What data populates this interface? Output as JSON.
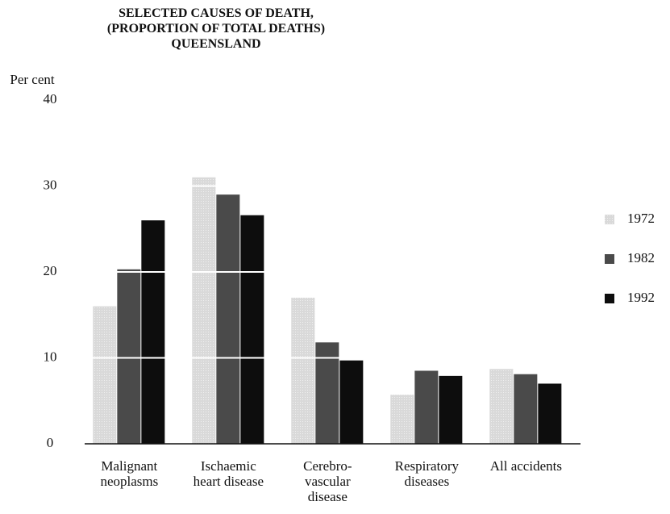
{
  "chart_data": {
    "type": "bar",
    "title": "SELECTED CAUSES OF DEATH,\n(PROPORTION OF TOTAL DEATHS)\nQUEENSLAND",
    "y_label": "Per cent",
    "categories": [
      "Malignant\nneoplasms",
      "Ischaemic\nheart disease",
      "Cerebro-\nvascular\ndisease",
      "Respiratory\ndiseases",
      "All accidents"
    ],
    "series": [
      {
        "name": "1972",
        "color": "#c4c4c4",
        "values": [
          16,
          31,
          17,
          5.7,
          8.7
        ]
      },
      {
        "name": "1982",
        "color": "#4a4a4a",
        "values": [
          20.3,
          29,
          11.8,
          8.5,
          8.1
        ]
      },
      {
        "name": "1992",
        "color": "#0d0d0d",
        "values": [
          26,
          26.6,
          9.7,
          7.9,
          7
        ]
      }
    ],
    "ylim": [
      0,
      40
    ],
    "yticks": [
      0,
      10,
      20,
      30,
      40
    ],
    "grid": true,
    "legend": "right"
  }
}
